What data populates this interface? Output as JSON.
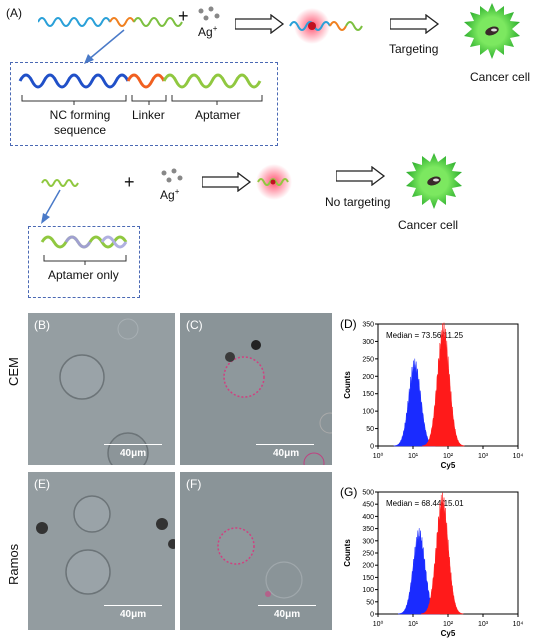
{
  "top_scheme": {
    "label": "(A)",
    "plus": "+",
    "ion": "Ag",
    "ion_sup": "+",
    "nc_label_line1": "NC forming",
    "nc_label_line2": "sequence",
    "linker_label": "Linker",
    "aptamer_label": "Aptamer",
    "targeting_label": "Targeting",
    "cell_label": "Cancer cell"
  },
  "bottom_scheme": {
    "plus": "+",
    "ion": "Ag",
    "ion_sup": "+",
    "no_targeting_label": "No targeting",
    "cell_label": "Cancer cell",
    "aptamer_only_label": "Aptamer only"
  },
  "rows": [
    {
      "row_label": "CEM"
    },
    {
      "row_label": "Ramos"
    }
  ],
  "panels": [
    {
      "tag": "(B)",
      "scale": "40μm"
    },
    {
      "tag": "(C)",
      "scale": "40μm"
    },
    {
      "tag": "(E)",
      "scale": "40μm"
    },
    {
      "tag": "(F)",
      "scale": "40μm"
    }
  ],
  "chart_data": [
    {
      "type": "area",
      "panel_label": "(D)",
      "annotation": "Median = 73.56/11.25",
      "xlabel": "Cy5",
      "ylabel": "Counts",
      "x_scale": "log",
      "xlim": [
        1,
        10000
      ],
      "x_ticks": [
        "10⁰",
        "10¹",
        "10²",
        "10³",
        "10⁴"
      ],
      "y_ticks": [
        "0",
        "50",
        "100",
        "150",
        "200",
        "250",
        "300",
        "350"
      ],
      "ylim": [
        0,
        350
      ],
      "colors": [
        "#1a2bff",
        "#ff1a1a"
      ],
      "series": [
        {
          "median": 11.25,
          "peak": 230
        },
        {
          "median": 73.56,
          "peak": 325
        }
      ]
    },
    {
      "type": "area",
      "panel_label": "(G)",
      "annotation": "Median = 68.44/15.01",
      "xlabel": "Cy5",
      "ylabel": "Counts",
      "x_scale": "log",
      "xlim": [
        1,
        10000
      ],
      "x_ticks": [
        "10⁰",
        "10¹",
        "10²",
        "10³",
        "10⁴"
      ],
      "y_ticks": [
        "0",
        "50",
        "100",
        "150",
        "200",
        "250",
        "300",
        "350",
        "400",
        "450",
        "500"
      ],
      "ylim": [
        0,
        500
      ],
      "colors": [
        "#1a2bff",
        "#ff1a1a"
      ],
      "series": [
        {
          "median": 15.01,
          "peak": 320
        },
        {
          "median": 68.44,
          "peak": 455
        }
      ]
    }
  ]
}
